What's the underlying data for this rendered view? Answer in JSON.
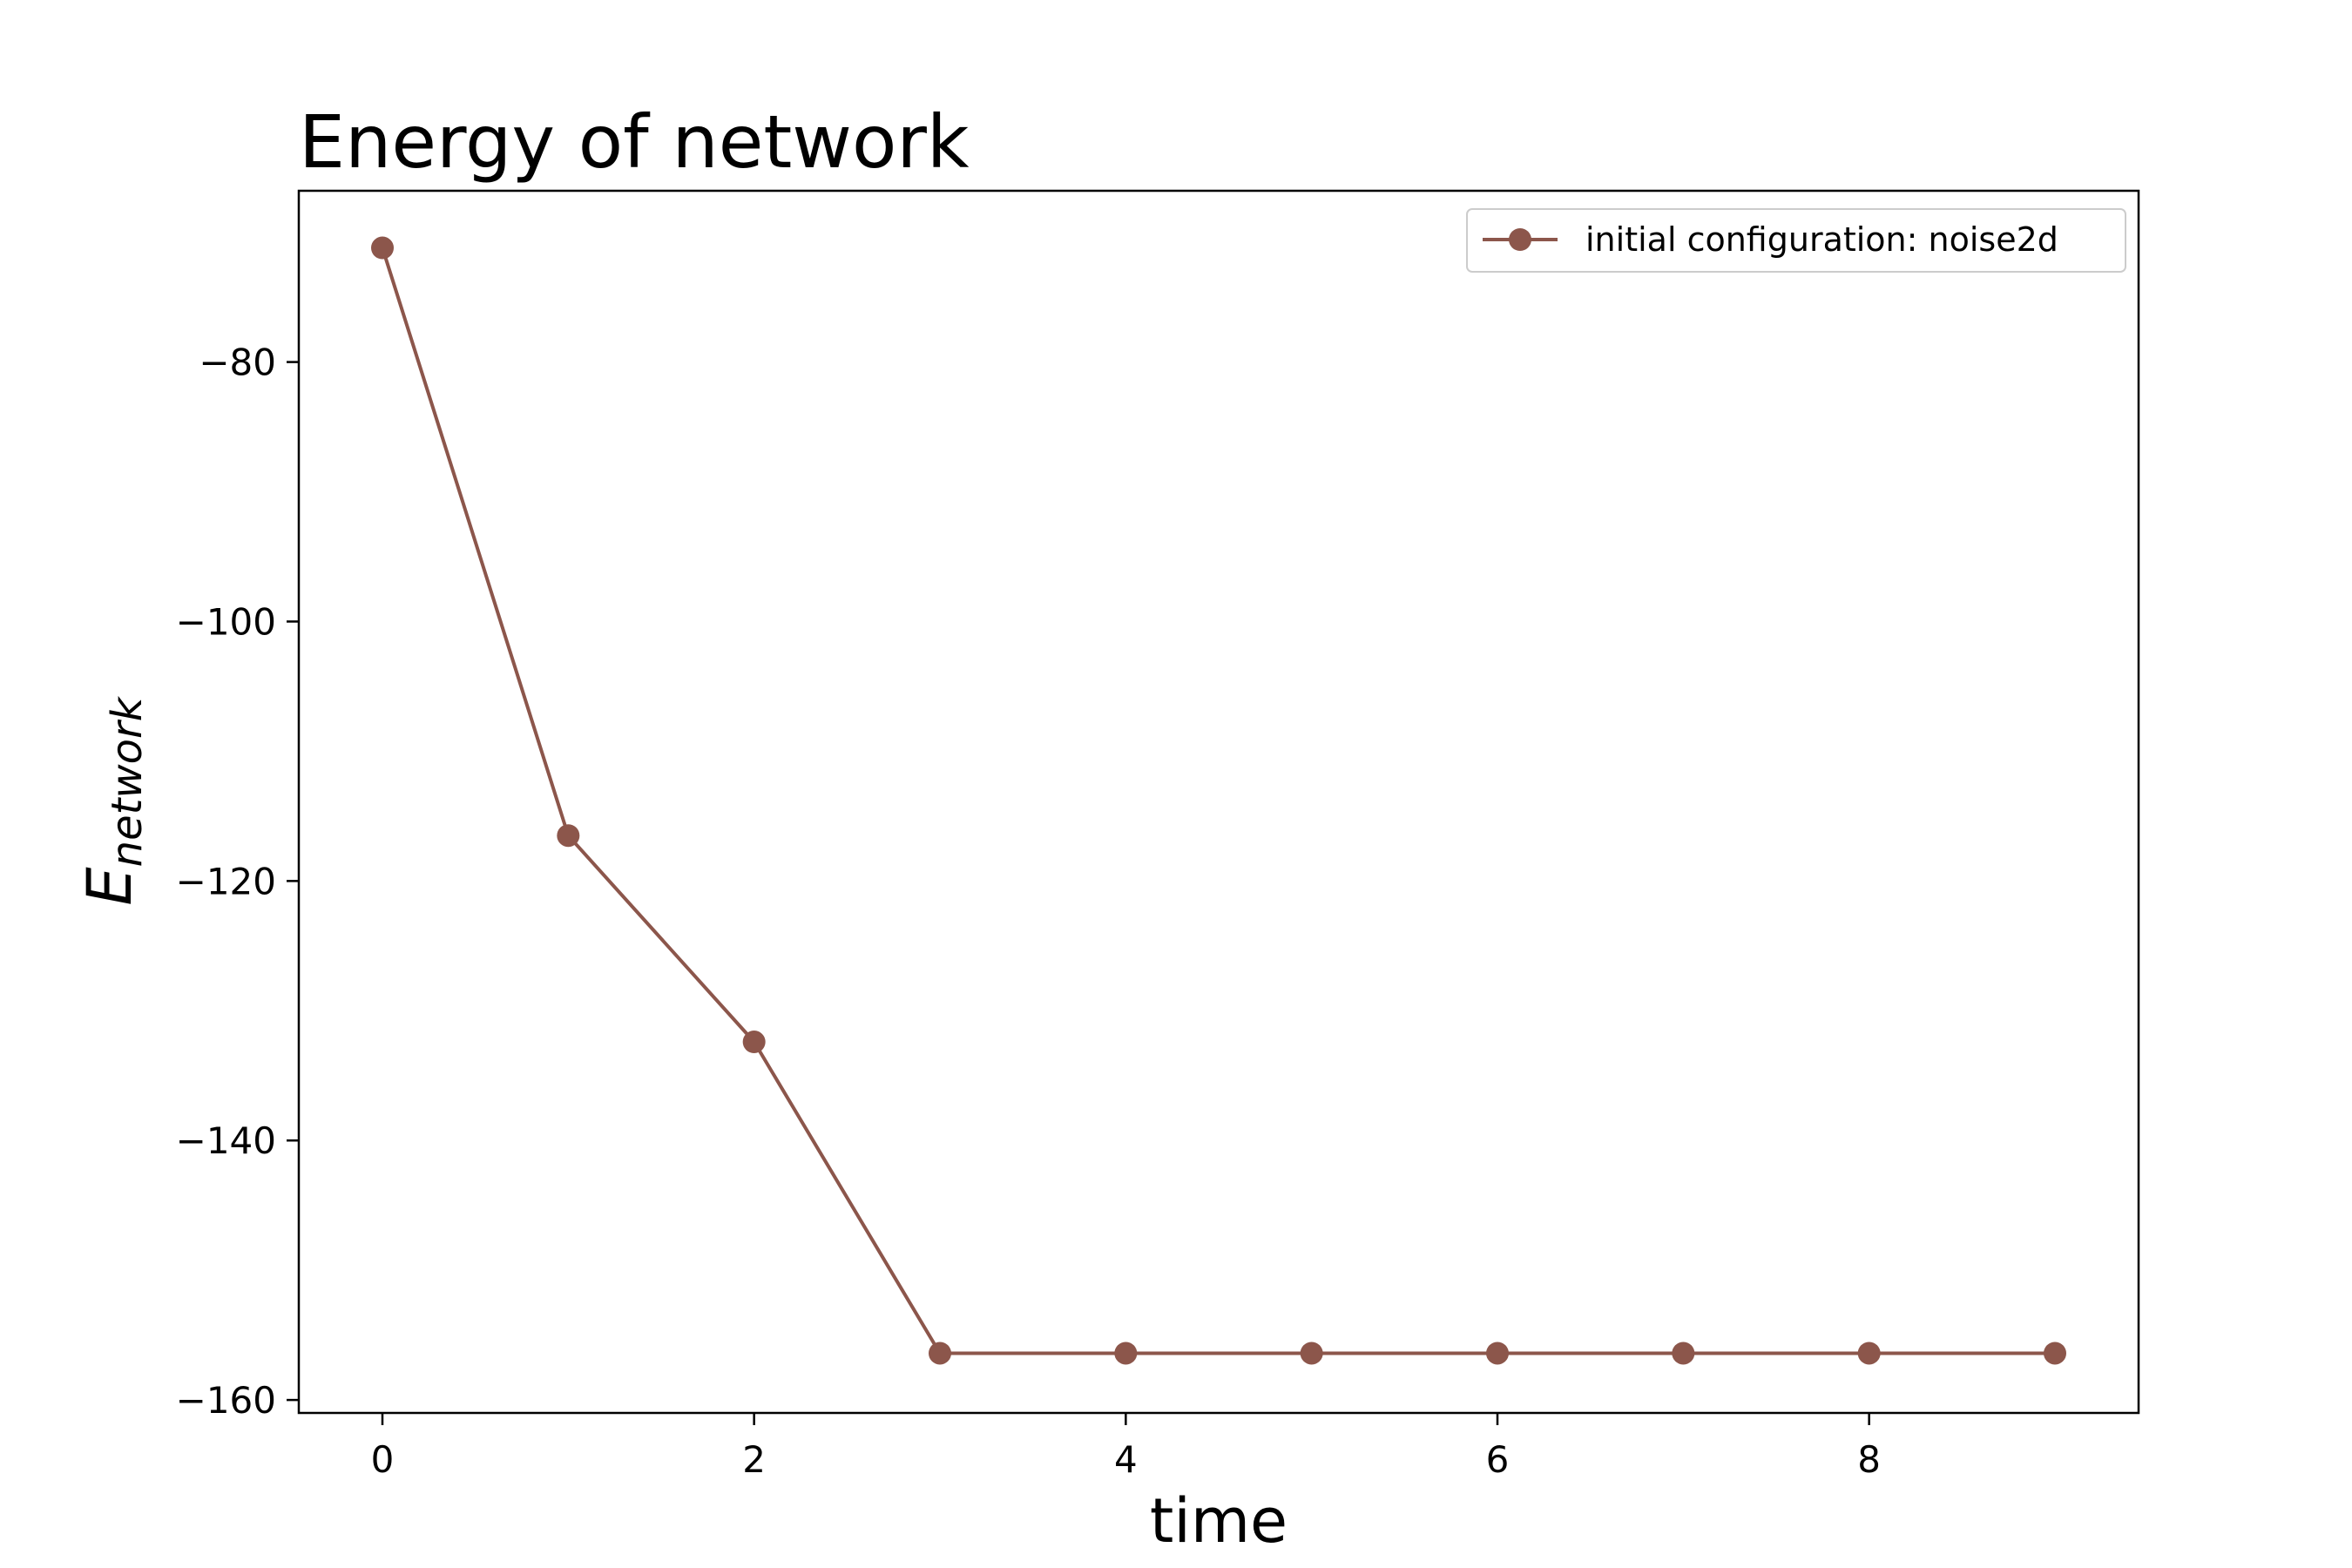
{
  "chart_data": {
    "type": "line",
    "title": "Energy of network",
    "xlabel": "time",
    "ylabel": {
      "main": "E",
      "subscript": "network"
    },
    "xlim": [
      -0.45,
      9.45
    ],
    "ylim": [
      -161,
      -66.8
    ],
    "xticks": [
      0,
      2,
      4,
      6,
      8
    ],
    "xtick_labels": [
      "0",
      "2",
      "4",
      "6",
      "8"
    ],
    "yticks": [
      -80,
      -100,
      -120,
      -140,
      -160
    ],
    "ytick_labels": [
      "−80",
      "−100",
      "−120",
      "−140",
      "−160"
    ],
    "grid": false,
    "legend_position": "upper right",
    "series": [
      {
        "name": "initial configuration: noise2d",
        "color": "#8c564b",
        "marker": "circle",
        "x": [
          0,
          1,
          2,
          3,
          4,
          5,
          6,
          7,
          8,
          9
        ],
        "y": [
          -71.2,
          -116.5,
          -132.4,
          -156.4,
          -156.4,
          -156.4,
          -156.4,
          -156.4,
          -156.4,
          -156.4
        ]
      }
    ]
  }
}
